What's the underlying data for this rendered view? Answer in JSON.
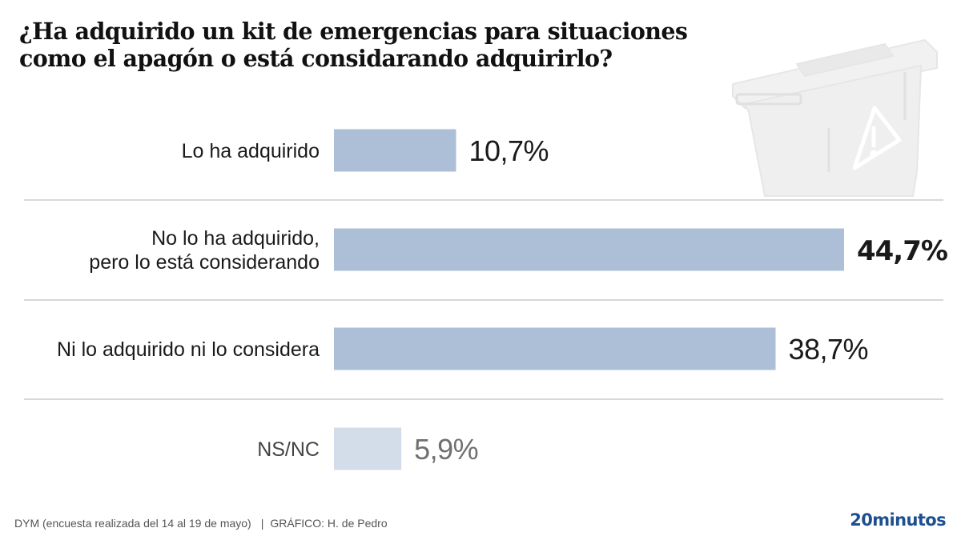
{
  "title_lines": [
    "¿Ha adquirido un kit de emergencias para situaciones",
    "como el apagón o está considarando adquirirlo?"
  ],
  "illustration": {
    "icon": "emergency-kit-box-icon",
    "symbol": "warning-triangle-icon"
  },
  "colors": {
    "bar": "#acbfd7",
    "bar_muted": "#d3dde9",
    "separator": "#cccccc",
    "text": "#1a1a1a",
    "text_muted": "#707070",
    "brand": "#1d4f91"
  },
  "chart_data": {
    "type": "bar",
    "orientation": "horizontal",
    "title": "¿Ha adquirido un kit de emergencias para situaciones como el apagón o está considarando adquirirlo?",
    "xlabel": "",
    "ylabel": "",
    "xlim": [
      0,
      50
    ],
    "grid": false,
    "legend": "none",
    "categories": [
      [
        "Lo ha adquirido"
      ],
      [
        "No lo ha adquirido,",
        "pero lo está considerando"
      ],
      [
        "Ni lo adquirido ni lo considera"
      ],
      [
        "NS/NC"
      ]
    ],
    "values": [
      10.7,
      44.7,
      38.7,
      5.9
    ],
    "value_labels": [
      "10,7%",
      "44,7%",
      "38,7%",
      "5,9%"
    ],
    "highlight_index": 1,
    "muted_index": 3
  },
  "footer": {
    "source": "DYM (encuesta realizada del 14 al 19 de mayo)",
    "separator": "|",
    "credit": "GRÁFICO: H. de Pedro",
    "brand": "20minutos"
  }
}
